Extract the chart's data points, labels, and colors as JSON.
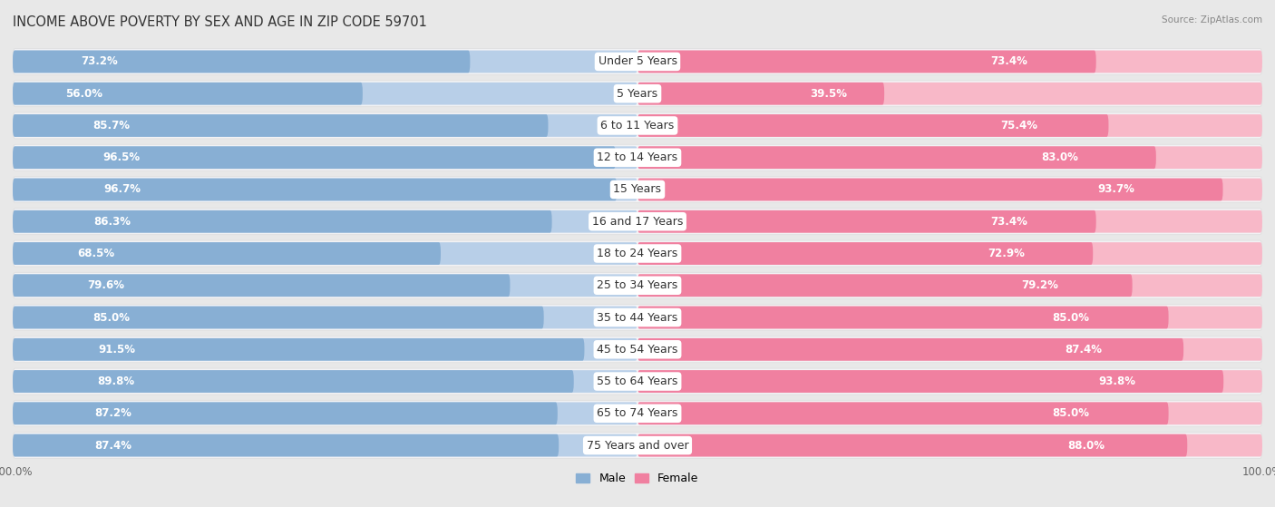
{
  "title": "INCOME ABOVE POVERTY BY SEX AND AGE IN ZIP CODE 59701",
  "source": "Source: ZipAtlas.com",
  "categories": [
    "Under 5 Years",
    "5 Years",
    "6 to 11 Years",
    "12 to 14 Years",
    "15 Years",
    "16 and 17 Years",
    "18 to 24 Years",
    "25 to 34 Years",
    "35 to 44 Years",
    "45 to 54 Years",
    "55 to 64 Years",
    "65 to 74 Years",
    "75 Years and over"
  ],
  "male_values": [
    73.2,
    56.0,
    85.7,
    96.5,
    96.7,
    86.3,
    68.5,
    79.6,
    85.0,
    91.5,
    89.8,
    87.2,
    87.4
  ],
  "female_values": [
    73.4,
    39.5,
    75.4,
    83.0,
    93.7,
    73.4,
    72.9,
    79.2,
    85.0,
    87.4,
    93.8,
    85.0,
    88.0
  ],
  "male_color": "#88afd4",
  "female_color": "#f080a0",
  "male_color_light": "#b8cfe8",
  "female_color_light": "#f8b8c8",
  "male_label": "Male",
  "female_label": "Female",
  "background_color": "#e8e8e8",
  "row_bg_color": "#f0f0f0",
  "bar_bg_color": "#d8d8e8",
  "title_fontsize": 10.5,
  "label_fontsize": 9,
  "value_fontsize": 8.5,
  "tick_fontsize": 8.5,
  "axis_max": 100.0
}
